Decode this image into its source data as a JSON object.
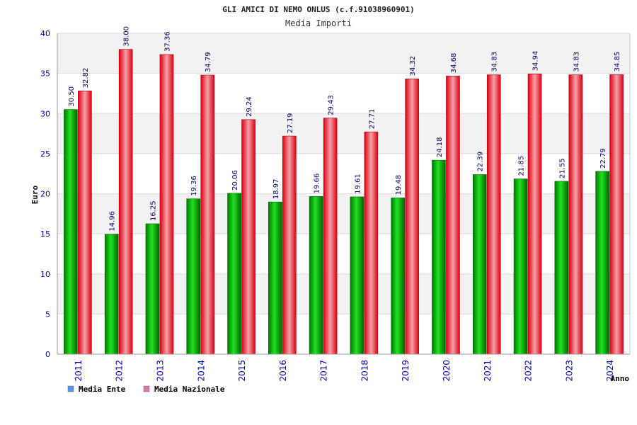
{
  "chart_data": {
    "type": "bar",
    "title": "GLI AMICI DI NEMO ONLUS (c.f.91038960901)",
    "subtitle": "Media Importi",
    "xlabel": "Anno",
    "ylabel": "Euro",
    "ylim": [
      0,
      40
    ],
    "yticks": [
      0,
      5,
      10,
      15,
      20,
      25,
      30,
      35,
      40
    ],
    "grid": true,
    "legend_position": "bottom-left",
    "categories": [
      "2011",
      "2012",
      "2013",
      "2014",
      "2015",
      "2016",
      "2017",
      "2018",
      "2019",
      "2020",
      "2021",
      "2022",
      "2023",
      "2024"
    ],
    "series": [
      {
        "name": "Media Ente",
        "color": "#00bb00",
        "legend_color": "#5599ee",
        "values": [
          30.5,
          14.96,
          16.25,
          19.36,
          20.06,
          18.97,
          19.66,
          19.61,
          19.48,
          24.18,
          22.39,
          21.85,
          21.55,
          22.79
        ],
        "labels": [
          "30.50",
          "14.96",
          "16.25",
          "19.36",
          "20.06",
          "18.97",
          "19.66",
          "19.61",
          "19.48",
          "24.18",
          "22.39",
          "21.85",
          "21.55",
          "22.79"
        ]
      },
      {
        "name": "Media Nazionale",
        "color": "#ee1122",
        "legend_color": "#dd77aa",
        "values": [
          32.82,
          38.0,
          37.36,
          34.79,
          29.24,
          27.19,
          29.43,
          27.71,
          34.32,
          34.68,
          34.83,
          34.94,
          34.83,
          34.85
        ],
        "labels": [
          "32.82",
          "38.00",
          "37.36",
          "34.79",
          "29.24",
          "27.19",
          "29.43",
          "27.71",
          "34.32",
          "34.68",
          "34.83",
          "34.94",
          "34.83",
          "34.85"
        ]
      }
    ]
  }
}
